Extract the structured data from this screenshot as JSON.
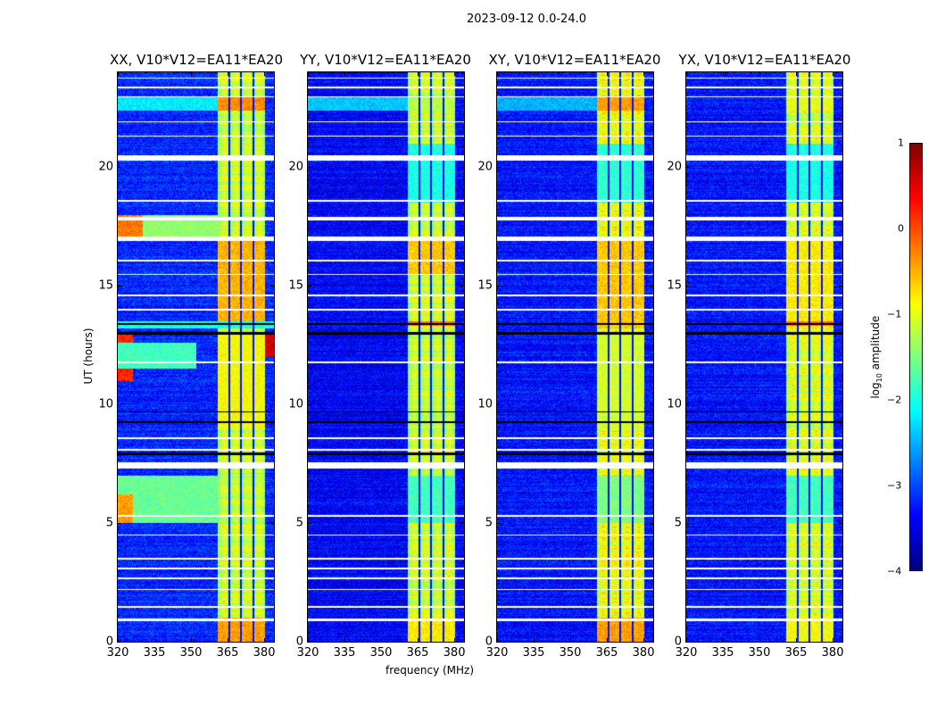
{
  "chart_data": {
    "type": "heatmap",
    "title": "2023-09-12 0.0-24.0",
    "xlabel": "frequency (MHz)",
    "ylabel": "UT (hours)",
    "xlim": [
      320,
      384
    ],
    "ylim": [
      0,
      24
    ],
    "xticks": [
      "320",
      "335",
      "350",
      "365",
      "380"
    ],
    "yticks": [
      "0",
      "5",
      "10",
      "15",
      "20"
    ],
    "colorbar": {
      "label_main": "log",
      "label_sub": "10",
      "label_tail": " amplitude",
      "range": [
        -4,
        1
      ],
      "ticks": [
        "1",
        "0",
        "−1",
        "−2",
        "−3",
        "−4"
      ],
      "colormap": "jet"
    },
    "band_mhz": [
      361,
      380.5
    ],
    "band_gaps_mhz": [
      365.7,
      370.6,
      375.6
    ],
    "flagged_white_hours": [
      [
        0.85,
        0.95
      ],
      [
        1.4,
        1.5
      ],
      [
        2.15,
        2.22
      ],
      [
        2.62,
        2.68
      ],
      [
        3.05,
        3.12
      ],
      [
        3.45,
        3.52
      ],
      [
        4.45,
        4.52
      ],
      [
        5.25,
        5.35
      ],
      [
        7.3,
        7.55
      ],
      [
        8.05,
        8.12
      ],
      [
        8.55,
        8.62
      ],
      [
        11.75,
        11.82
      ],
      [
        13.95,
        14.05
      ],
      [
        14.55,
        14.62
      ],
      [
        15.45,
        15.52
      ],
      [
        16.05,
        16.12
      ],
      [
        16.9,
        17.1
      ],
      [
        17.75,
        17.9
      ],
      [
        18.55,
        18.62
      ],
      [
        20.3,
        20.5
      ],
      [
        21.3,
        21.36
      ],
      [
        21.9,
        21.96
      ],
      [
        22.95,
        23.0
      ],
      [
        23.35,
        23.4
      ],
      [
        23.75,
        23.8
      ]
    ],
    "flagged_black_hours": [
      [
        7.85,
        7.95
      ],
      [
        9.2,
        9.3
      ],
      [
        9.65,
        9.72
      ],
      [
        12.95,
        13.05
      ],
      [
        13.35,
        13.45
      ]
    ],
    "panels": [
      {
        "title": "XX, V10*V12=EA11*EA20",
        "base": -3.2,
        "band": -1.2,
        "events": [
          [
            0,
            1,
            361,
            380.5,
            -0.4
          ],
          [
            13.5,
            17,
            361,
            380.5,
            -0.5
          ],
          [
            22.4,
            23,
            361,
            380.5,
            -0.3
          ],
          [
            22.4,
            23,
            320,
            361,
            -2.2
          ],
          [
            5,
            7,
            320,
            361,
            -1.6
          ],
          [
            5,
            6.2,
            320,
            326,
            -0.4
          ],
          [
            11,
            13,
            320,
            326,
            0.2
          ],
          [
            12,
            13,
            380.5,
            384,
            0.6
          ],
          [
            11.5,
            12.6,
            320,
            352,
            -1.8
          ],
          [
            17,
            18,
            320,
            330,
            -0.2
          ],
          [
            17,
            18,
            330,
            361,
            -1.4
          ],
          [
            9,
            13,
            361,
            380.5,
            -0.9
          ],
          [
            13.2,
            13.5,
            320,
            384,
            -2.0
          ]
        ]
      },
      {
        "title": "YY, V10*V12=EA11*EA20",
        "base": -3.4,
        "band": -1.2,
        "events": [
          [
            0,
            1,
            361,
            380.5,
            -0.8
          ],
          [
            15.5,
            17,
            361,
            380.5,
            -0.6
          ],
          [
            22.4,
            23,
            320,
            361,
            -2.4
          ],
          [
            22.4,
            23,
            361,
            380.5,
            -1.2
          ],
          [
            18.5,
            21,
            361,
            380.5,
            -2.0
          ],
          [
            5,
            7,
            361,
            380.5,
            -1.8
          ],
          [
            13.3,
            13.5,
            361,
            380.5,
            -0.2
          ]
        ]
      },
      {
        "title": "XY, V10*V12=EA11*EA20",
        "base": -3.3,
        "band": -1.0,
        "events": [
          [
            0,
            1,
            361,
            380.5,
            -0.4
          ],
          [
            13.2,
            17,
            361,
            380.5,
            -0.6
          ],
          [
            22.4,
            23,
            361,
            380.5,
            -0.4
          ],
          [
            22.4,
            23,
            320,
            361,
            -2.5
          ],
          [
            18.5,
            21,
            361,
            380.5,
            -1.9
          ],
          [
            5,
            7,
            361,
            380.5,
            -1.5
          ],
          [
            9,
            13,
            361,
            380.5,
            -1.1
          ]
        ]
      },
      {
        "title": "YX, V10*V12=EA11*EA20",
        "base": -3.3,
        "band": -1.1,
        "events": [
          [
            0,
            1,
            361,
            380.5,
            -0.9
          ],
          [
            13.2,
            17,
            361,
            380.5,
            -0.8
          ],
          [
            22.4,
            23,
            361,
            380.5,
            -1.0
          ],
          [
            18.5,
            21,
            361,
            380.5,
            -2.0
          ],
          [
            5,
            7,
            361,
            380.5,
            -1.8
          ],
          [
            13.3,
            13.5,
            361,
            380.5,
            -0.2
          ]
        ]
      }
    ]
  }
}
